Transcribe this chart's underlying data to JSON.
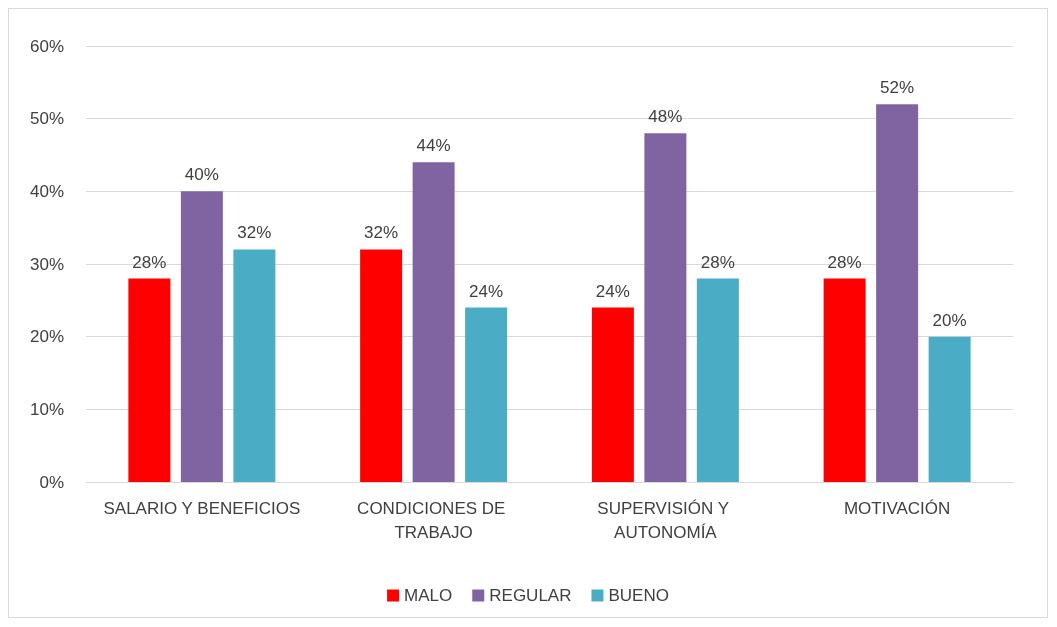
{
  "chart_data": {
    "type": "bar",
    "categories": [
      "SALARIO Y BENEFICIOS",
      "CONDICIONES DE TRABAJO",
      "SUPERVISIÓN Y AUTONOMÍA",
      "MOTIVACIÓN"
    ],
    "series": [
      {
        "name": "MALO",
        "color": "#ff0000",
        "values": [
          28,
          32,
          24,
          28
        ],
        "value_labels": [
          "28%",
          "32%",
          "24%",
          "28%"
        ]
      },
      {
        "name": "REGULAR",
        "color": "#8064a2",
        "values": [
          40,
          44,
          48,
          52
        ],
        "value_labels": [
          "40%",
          "44%",
          "48%",
          "52%"
        ]
      },
      {
        "name": "BUENO",
        "color": "#4bacc6",
        "values": [
          32,
          24,
          28,
          20
        ],
        "value_labels": [
          "32%",
          "24%",
          "28%",
          "20%"
        ]
      }
    ],
    "ylim": [
      0,
      60
    ],
    "yticks": [
      {
        "value": 0,
        "label": "0%"
      },
      {
        "value": 10,
        "label": "10%"
      },
      {
        "value": 20,
        "label": "20%"
      },
      {
        "value": 30,
        "label": "30%"
      },
      {
        "value": 40,
        "label": "40%"
      },
      {
        "value": 50,
        "label": "50%"
      },
      {
        "value": 60,
        "label": "60%"
      }
    ],
    "grid": "y",
    "legend": "bottom"
  }
}
